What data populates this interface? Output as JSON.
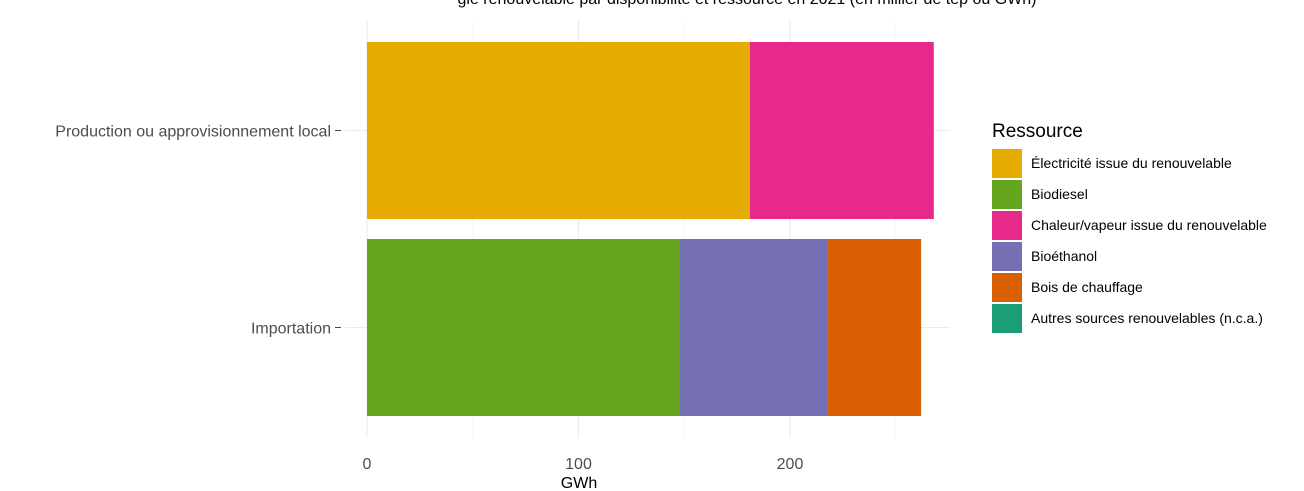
{
  "chart_data": {
    "type": "bar",
    "orientation": "horizontal",
    "stacked": true,
    "title": "gie renouvelable par disponibilité et ressource en 2021 (en millier de tep ou GWh)",
    "xlabel": "GWh",
    "ylabel": "",
    "xlim": [
      0,
      275
    ],
    "x_ticks": [
      0,
      100,
      200
    ],
    "grid": true,
    "legend": {
      "title": "Ressource",
      "position": "right"
    },
    "categories": [
      "Production ou approvisionnement local",
      "Importation"
    ],
    "series": [
      {
        "name": "Électricité issue du renouvelable",
        "color": "#E6AB02",
        "values": [
          181,
          0
        ]
      },
      {
        "name": "Biodiesel",
        "color": "#66A61E",
        "values": [
          0,
          148
        ]
      },
      {
        "name": "Chaleur/vapeur issue du renouvelable",
        "color": "#E7298A",
        "values": [
          87,
          0
        ]
      },
      {
        "name": "Bioéthanol",
        "color": "#7570B3",
        "values": [
          0,
          70
        ]
      },
      {
        "name": "Bois de chauffage",
        "color": "#D95F02",
        "values": [
          0,
          44
        ]
      },
      {
        "name": "Autres sources renouvelables (n.c.a.)",
        "color": "#1B9E77",
        "values": [
          0,
          0
        ]
      }
    ]
  }
}
